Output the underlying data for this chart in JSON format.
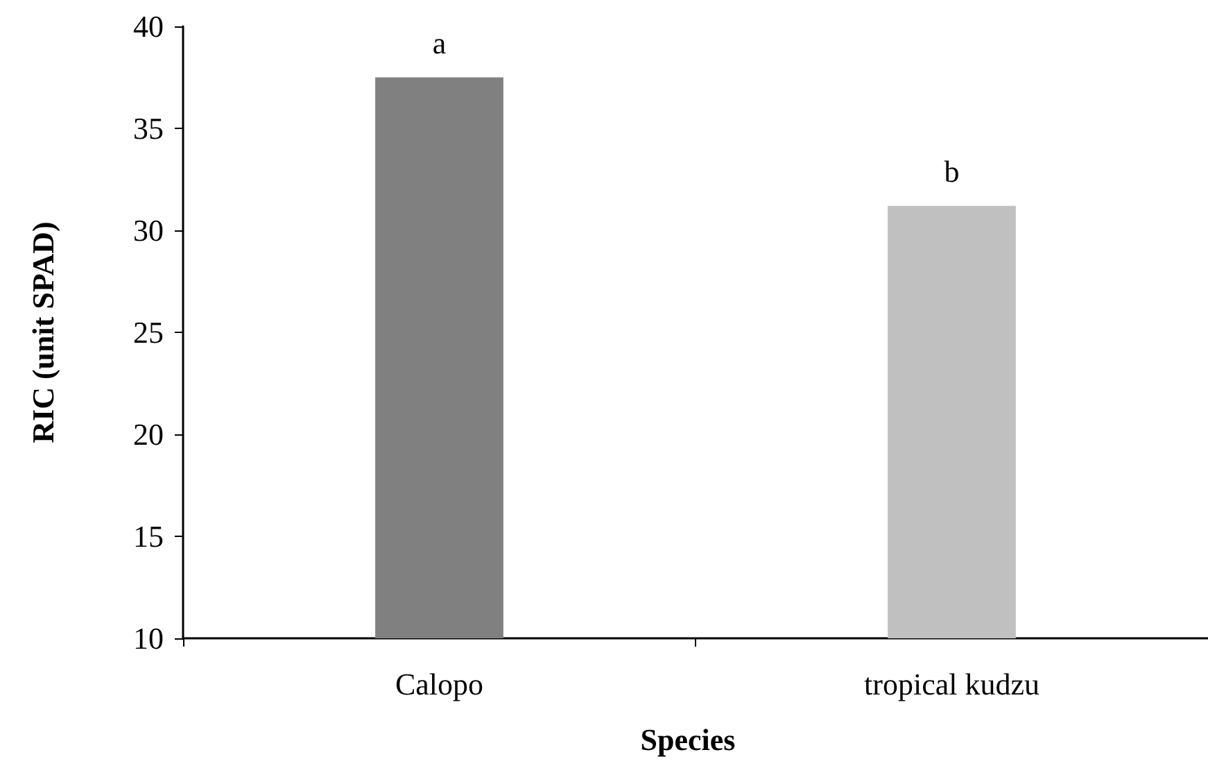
{
  "chart_data": {
    "type": "bar",
    "xlabel": "Species",
    "ylabel": "RIC (unit SPAD)",
    "categories": [
      "Calopo",
      "tropical kudzu"
    ],
    "values": [
      37.5,
      31.2
    ],
    "colors": [
      "#808080",
      "#c0c0c0"
    ],
    "ylim": [
      10,
      40
    ],
    "yticks": [
      10,
      15,
      20,
      25,
      30,
      35,
      40
    ],
    "grid": false,
    "annotations": [
      {
        "text": "a",
        "x": "Calopo",
        "y": 37.5
      },
      {
        "text": "b",
        "x": "tropical kudzu",
        "y": 31.2
      }
    ]
  }
}
